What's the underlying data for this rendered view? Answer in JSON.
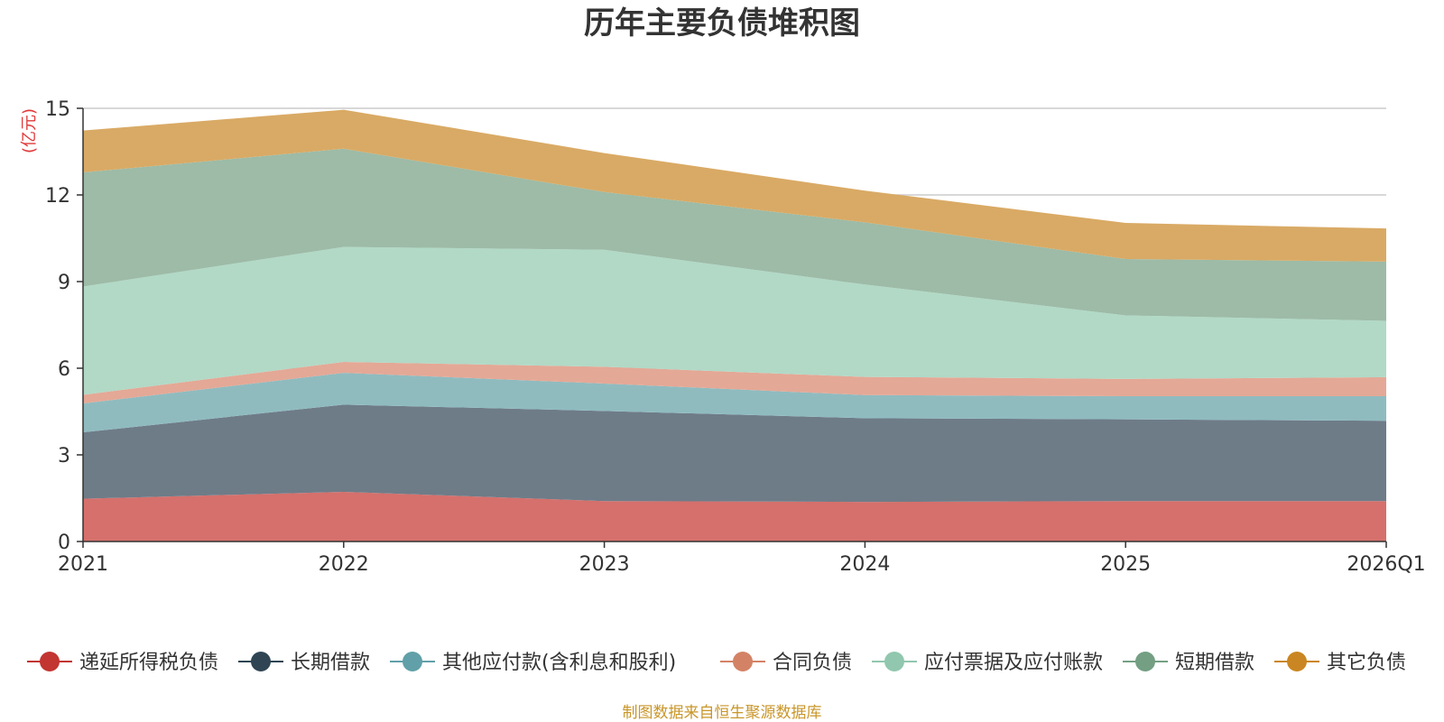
{
  "chart_data": {
    "type": "area",
    "stacked": true,
    "title": "历年主要负债堆积图",
    "unit_label": "(亿元)",
    "categories": [
      "2021",
      "2022",
      "2023",
      "2024",
      "2025",
      "2026Q1"
    ],
    "ylim": [
      0,
      15
    ],
    "yticks": [
      0,
      3,
      6,
      9,
      12,
      15
    ],
    "grid": true,
    "legend_position": "bottom",
    "series": [
      {
        "name": "递延所得税负债",
        "color": "#d5706c",
        "line_color": "#c23531",
        "values": [
          1.48,
          1.72,
          1.4,
          1.37,
          1.4,
          1.4
        ]
      },
      {
        "name": "长期借款",
        "color": "#6e7c88",
        "line_color": "#2f4554",
        "values": [
          2.3,
          3.02,
          3.12,
          2.9,
          2.83,
          2.78
        ]
      },
      {
        "name": "其他应付款(含利息和股利)",
        "color": "#8fbbbf",
        "line_color": "#61a0a8",
        "values": [
          1.0,
          1.1,
          0.95,
          0.8,
          0.8,
          0.85
        ]
      },
      {
        "name": "合同负债",
        "color": "#e4a896",
        "line_color": "#d48265",
        "values": [
          0.3,
          0.38,
          0.58,
          0.63,
          0.6,
          0.66
        ]
      },
      {
        "name": "应付票据及应付账款",
        "color": "#b1d9c6",
        "line_color": "#91c7ae",
        "values": [
          3.75,
          3.98,
          4.05,
          3.2,
          2.2,
          1.95
        ]
      },
      {
        "name": "短期借款",
        "color": "#9dbba7",
        "line_color": "#749f83",
        "values": [
          3.95,
          3.4,
          2.0,
          2.15,
          1.95,
          2.05
        ]
      },
      {
        "name": "其它负债",
        "color": "#d9aa65",
        "line_color": "#ca8622",
        "values": [
          1.45,
          1.35,
          1.35,
          1.1,
          1.25,
          1.15
        ]
      }
    ]
  },
  "source_text": "制图数据来自恒生聚源数据库"
}
